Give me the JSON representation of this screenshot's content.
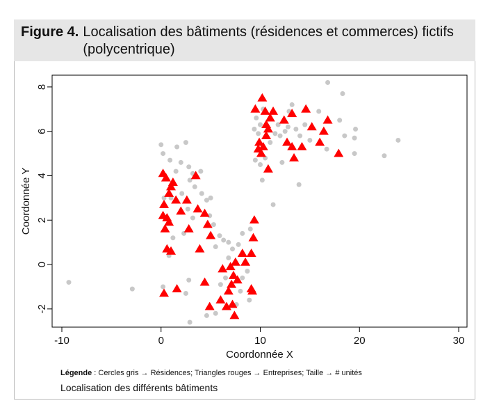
{
  "chart_data": {
    "type": "scatter",
    "figure_label": "Figure 4.",
    "title": "Localisation des bâtiments (résidences et commerces) fictifs (polycentrique)",
    "xlabel": "Coordonnée X",
    "ylabel": "Coordonnée Y",
    "legend_label": "Légende",
    "legend_text": ": Cercles gris → Résidences; Triangles rouges → Entreprises; Taille → # unités",
    "caption": "Localisation des différents bâtiments",
    "xlim": [
      -10.98,
      30.84
    ],
    "ylim": [
      -2.82,
      8.53
    ],
    "xticks": [
      -10,
      0,
      10,
      20,
      30
    ],
    "yticks": [
      -2,
      0,
      2,
      4,
      6,
      8
    ],
    "series": [
      {
        "marker": "circle",
        "color": "#c8c8c8",
        "x": [
          0,
          0.2,
          1.6,
          2.5,
          2,
          0.9,
          1.5,
          2.8,
          3.2,
          4,
          2.9,
          3.4,
          0.3,
          1,
          2.1,
          2.7,
          3.2,
          4.1,
          4.6,
          5,
          1.2,
          0.8,
          2.3,
          4.9,
          5.3,
          5.5,
          5.9,
          6.3,
          6.8,
          7.2,
          2.8,
          2.5,
          0.2,
          -9.3,
          -2.9,
          2.9,
          4.6,
          5.5,
          6,
          6.8,
          7.8,
          8.2,
          8.7,
          8.2,
          8.9,
          7.6,
          8,
          9,
          6.5,
          9.6,
          10.3,
          9.4,
          10,
          11.5,
          12,
          12.5,
          11.8,
          12.8,
          13.6,
          14,
          14.5,
          15,
          16.7,
          18.5,
          19.5,
          19.5,
          19.6,
          18,
          18.3,
          16.8,
          22.5,
          23.9,
          9.5,
          10,
          10.2,
          10.5,
          11.3,
          12.2,
          13.9,
          12.9,
          13.2,
          15.9,
          9.8,
          11
        ],
        "y": [
          5.4,
          5,
          5.3,
          5.5,
          4.6,
          4.7,
          4.2,
          4.4,
          4.1,
          4.2,
          3.8,
          3.5,
          3,
          3,
          3.2,
          2.5,
          2.1,
          3.2,
          2.9,
          3,
          1.2,
          0.4,
          1.4,
          2.2,
          1.8,
          0.8,
          1.3,
          1.1,
          1,
          0.7,
          -0.7,
          -1.3,
          -1,
          -0.8,
          -1.1,
          -2.6,
          -2.3,
          -2.2,
          -0.9,
          0.3,
          0.9,
          1.4,
          -0.3,
          -0.6,
          -1.6,
          -1.8,
          -1.2,
          1.6,
          -0.6,
          6.6,
          7,
          6.1,
          6.3,
          5.9,
          5.8,
          6,
          6.3,
          6.2,
          6.1,
          5.8,
          6.3,
          5.6,
          5.2,
          5.8,
          5.7,
          5,
          6.1,
          6.5,
          7.7,
          8.2,
          4.9,
          5.6,
          4.7,
          4.5,
          3.8,
          4.8,
          2.7,
          4.6,
          3.6,
          6.9,
          7.2,
          6.9,
          5.9,
          5.5
        ]
      },
      {
        "marker": "triangle",
        "color": "#ff0000",
        "x": [
          0.2,
          0.5,
          1,
          0.8,
          1.2,
          0.3,
          0.2,
          0.6,
          0.4,
          0.8,
          1.5,
          2,
          2.6,
          2.8,
          3.5,
          3.7,
          4.4,
          4.7,
          5,
          0.6,
          1,
          3.9,
          0.3,
          1.6,
          4.4,
          4.9,
          6,
          6.6,
          7.2,
          7.4,
          6.2,
          7,
          7.5,
          7.3,
          7.7,
          7.1,
          8.2,
          9.1,
          9.3,
          9.4,
          8.5,
          9.2,
          9.1,
          6.8,
          10.2,
          9.5,
          10.5,
          11.3,
          11,
          10.6,
          10.8,
          9.9,
          9.8,
          10.3,
          10.1,
          10.8,
          12.4,
          13.2,
          14.6,
          12.7,
          13.2,
          13.4,
          14.2,
          15.2,
          16,
          16.4,
          16.8,
          17.9,
          10.6
        ],
        "y": [
          4.1,
          3.9,
          3.5,
          3.2,
          3.7,
          2.7,
          2.2,
          2.1,
          1.6,
          1.9,
          2.9,
          2.4,
          2.9,
          1.6,
          4,
          2.5,
          2.3,
          1.8,
          1.3,
          0.7,
          0.6,
          0.7,
          -1.3,
          -1.1,
          -0.8,
          -1.9,
          -1.6,
          -1.9,
          -1.8,
          -2.3,
          -0.2,
          -0.1,
          0.1,
          -0.5,
          -0.7,
          -0.9,
          0.5,
          0.5,
          1.2,
          2,
          0.1,
          -1.2,
          -1.1,
          -1.2,
          7.5,
          7,
          6.9,
          6.9,
          6.6,
          6.3,
          6.1,
          5.5,
          5.2,
          5.3,
          5,
          4.3,
          6.5,
          6.8,
          7,
          5.5,
          5.3,
          4.8,
          5.3,
          6.2,
          5.5,
          6,
          6.5,
          5,
          5.8
        ]
      }
    ]
  }
}
